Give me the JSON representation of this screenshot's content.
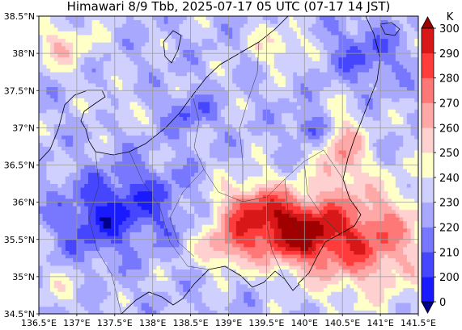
{
  "title": "Himawari 8/9 Tbb, 2025-07-17 05 UTC (07-17 14 JST)",
  "chart_data": {
    "type": "heatmap",
    "title": "Himawari 8/9 Tbb, 2025-07-17 05 UTC (07-17 14 JST)",
    "variable": "Tbb",
    "unit": "K",
    "xlim": [
      136.5,
      141.5
    ],
    "ylim": [
      34.5,
      38.5
    ],
    "x_ticks": [
      136.5,
      137.0,
      137.5,
      138.0,
      138.5,
      139.0,
      139.5,
      140.0,
      140.5,
      141.0,
      141.5
    ],
    "x_tick_labels": [
      "136.5°E",
      "137°E",
      "137.5°E",
      "138°E",
      "138.5°E",
      "139°E",
      "139.5°E",
      "140°E",
      "140.5°E",
      "141°E",
      "141.5°E"
    ],
    "y_ticks": [
      34.5,
      35.0,
      35.5,
      36.0,
      36.5,
      37.0,
      37.5,
      38.0,
      38.5
    ],
    "y_tick_labels": [
      "34.5°N",
      "35°N",
      "35.5°N",
      "36°N",
      "36.5°N",
      "37°N",
      "37.5°N",
      "38°N",
      "38.5°N"
    ],
    "grid": true,
    "colorbar": {
      "label": "K",
      "placement": "right",
      "levels": [
        0,
        200,
        210,
        220,
        230,
        240,
        250,
        260,
        270,
        280,
        290,
        300,
        310,
        400
      ],
      "colors": [
        "#00008b",
        "#1a1aff",
        "#4646ff",
        "#7878ff",
        "#a8a8ff",
        "#d0d0ff",
        "#ffffc8",
        "#ffd0d0",
        "#ffa8a8",
        "#ff7878",
        "#ff3c3c",
        "#d81818",
        "#a00000"
      ],
      "extend": "both"
    }
  }
}
